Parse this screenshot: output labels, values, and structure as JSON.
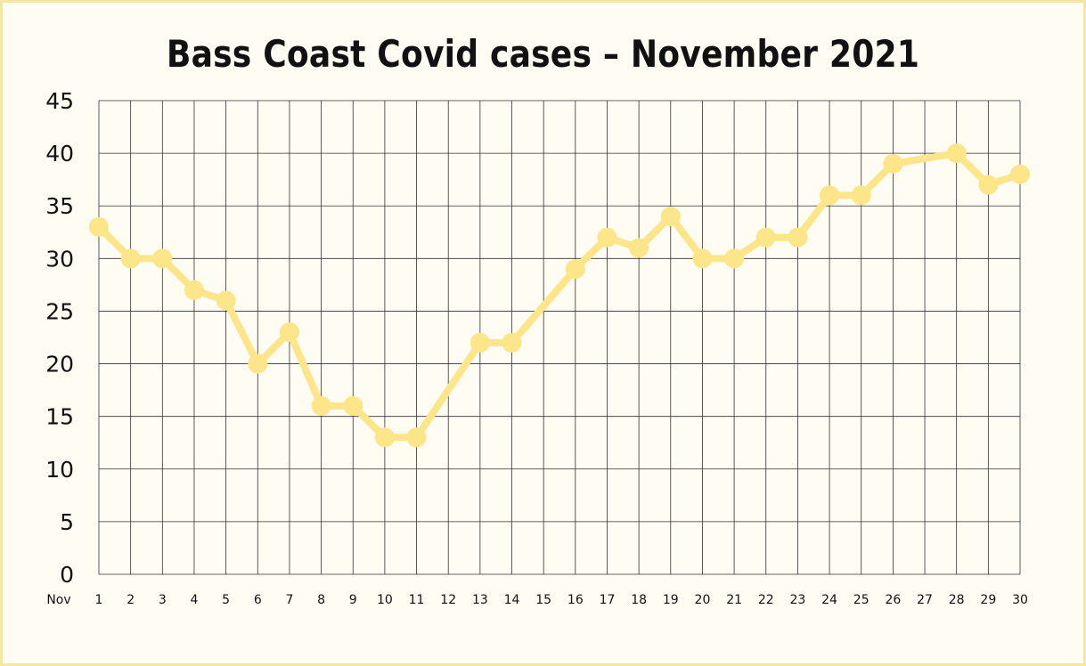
{
  "chart_data": {
    "type": "line",
    "title": "Bass Coast Covid cases – November 2021",
    "xlabel": "",
    "ylabel": "",
    "x_prefix_label": "Nov",
    "categories": [
      "1",
      "2",
      "3",
      "4",
      "5",
      "6",
      "7",
      "8",
      "9",
      "10",
      "11",
      "12",
      "13",
      "14",
      "15",
      "16",
      "17",
      "18",
      "19",
      "20",
      "21",
      "22",
      "23",
      "24",
      "25",
      "26",
      "27",
      "28",
      "29",
      "30"
    ],
    "series": [
      {
        "name": "",
        "x": [
          1,
          2,
          3,
          4,
          5,
          6,
          7,
          8,
          9,
          10,
          11,
          13,
          14,
          16,
          17,
          18,
          19,
          20,
          21,
          22,
          23,
          24,
          25,
          26,
          28,
          29,
          30
        ],
        "values": [
          33,
          30,
          30,
          27,
          26,
          20,
          23,
          16,
          16,
          13,
          13,
          22,
          22,
          29,
          32,
          31,
          34,
          30,
          30,
          32,
          32,
          36,
          36,
          39,
          40,
          37,
          38
        ]
      }
    ],
    "ylim": [
      0,
      45
    ],
    "yticks": [
      0,
      5,
      10,
      15,
      20,
      25,
      30,
      35,
      40,
      45
    ],
    "grid": true,
    "legend": "none",
    "colors": {
      "line": "#fde58a",
      "grid": "#333333",
      "background": "#fefcf3",
      "border": "#f6e6a3"
    }
  }
}
